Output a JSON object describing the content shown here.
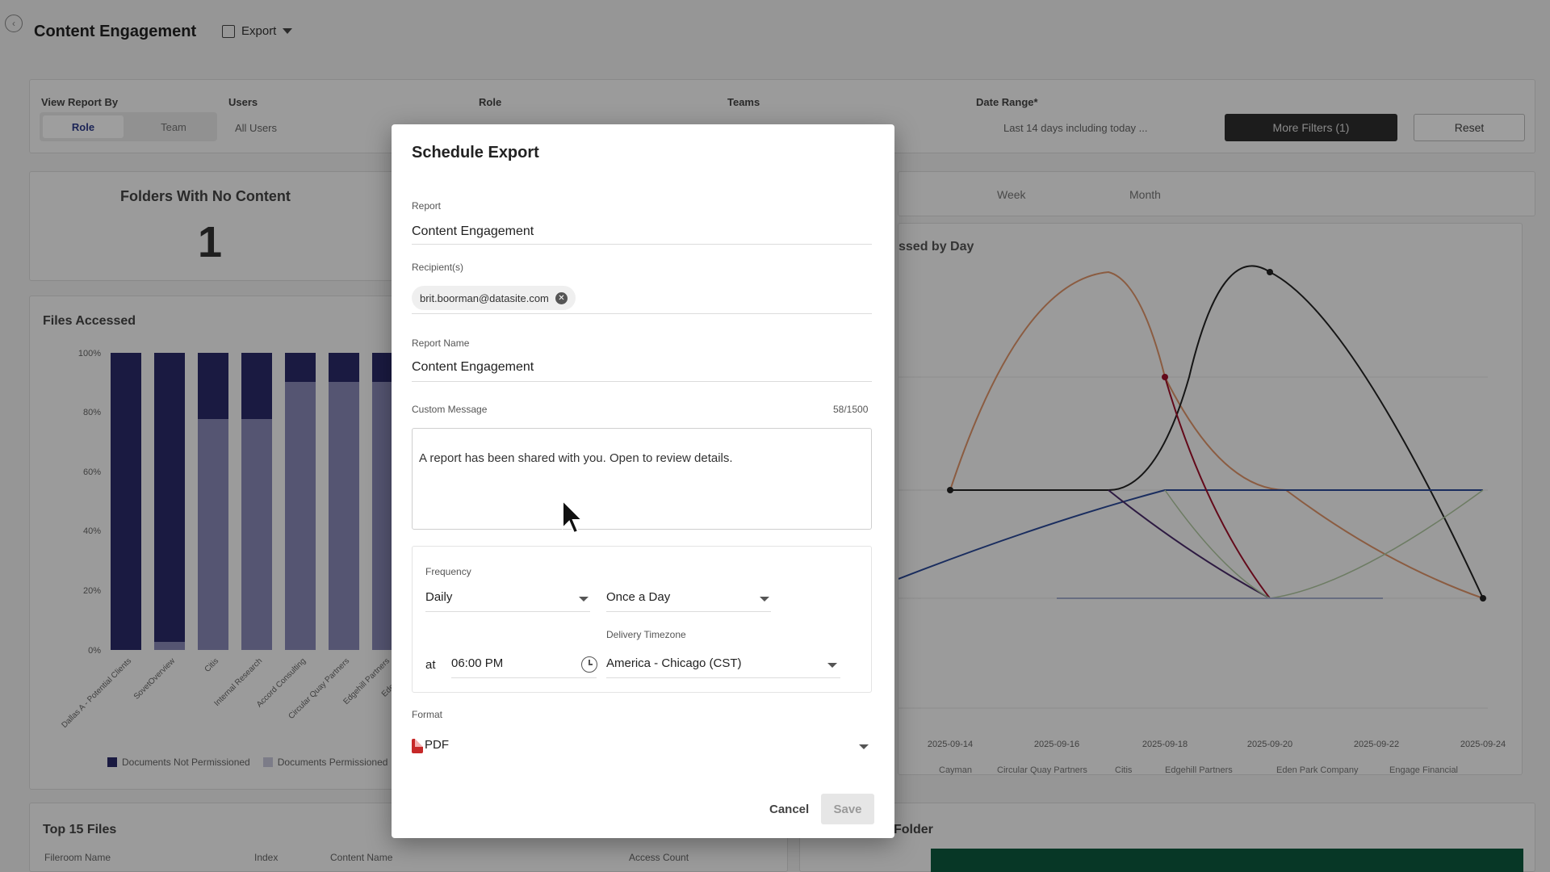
{
  "page": {
    "title": "Content Engagement",
    "export_label": "Export"
  },
  "filters": {
    "view_report_by_label": "View Report By",
    "view_options": [
      "Role",
      "Team"
    ],
    "users_label": "Users",
    "users_value": "All Users",
    "role_label": "Role",
    "teams_label": "Teams",
    "date_range_label": "Date Range*",
    "date_range_value": "Last 14 days including today ...",
    "more_filters_label": "More Filters (1)",
    "reset_label": "Reset"
  },
  "kpi": {
    "title": "Folders With No Content",
    "value": "1"
  },
  "files_accessed": {
    "title": "Files Accessed",
    "y_ticks": [
      "100%",
      "80%",
      "60%",
      "40%",
      "20%",
      "0%"
    ],
    "categories": [
      "Dallas A - Potential Clients",
      "SovetOverview",
      "Citis",
      "Internal Research",
      "Accord Consulting",
      "Circular Quay Partners",
      "Edgehill Partners",
      "Eden"
    ],
    "legend": [
      "Documents Not Permissioned",
      "Documents Permissioned"
    ]
  },
  "line_chart": {
    "title_fragment": "ssed by Day",
    "tabs": [
      "Week",
      "Month"
    ],
    "x_ticks": [
      "2025-09-14",
      "2025-09-16",
      "2025-09-18",
      "2025-09-20",
      "2025-09-22",
      "2025-09-24"
    ],
    "legend": [
      "Cayman",
      "Circular Quay Partners",
      "Citis",
      "Edgehill Partners",
      "Eden Park Company",
      "Engage Financial"
    ]
  },
  "bottom": {
    "top_files_title": "Top 15 Files",
    "columns": [
      "Fileroom Name",
      "Index",
      "Content Name",
      "Access Count"
    ],
    "right_title_fragment": "Folder"
  },
  "dialog": {
    "title": "Schedule Export",
    "report_label": "Report",
    "report_value": "Content Engagement",
    "recipients_label": "Recipient(s)",
    "recipient_chip": "brit.boorman@datasite.com",
    "report_name_label": "Report Name",
    "report_name_value": "Content Engagement",
    "custom_message_label": "Custom Message",
    "custom_message_count": "58/1500",
    "custom_message_value": "A report has been shared with you. Open to review details.",
    "frequency_label": "Frequency",
    "frequency_value": "Daily",
    "occurrence_value": "Once a Day",
    "delivery_timezone_label": "Delivery Timezone",
    "at_label": "at",
    "time_value": "06:00 PM",
    "timezone_value": "America - Chicago (CST)",
    "format_label": "Format",
    "format_value": "PDF",
    "cancel_label": "Cancel",
    "save_label": "Save"
  },
  "colors": {
    "bar_dark": "#2a2a6a",
    "bar_light": "#8a8ab8",
    "accent_red": "#c62828",
    "dark_bg_button": "#2e2e2e",
    "green": "#0c5a3e"
  }
}
